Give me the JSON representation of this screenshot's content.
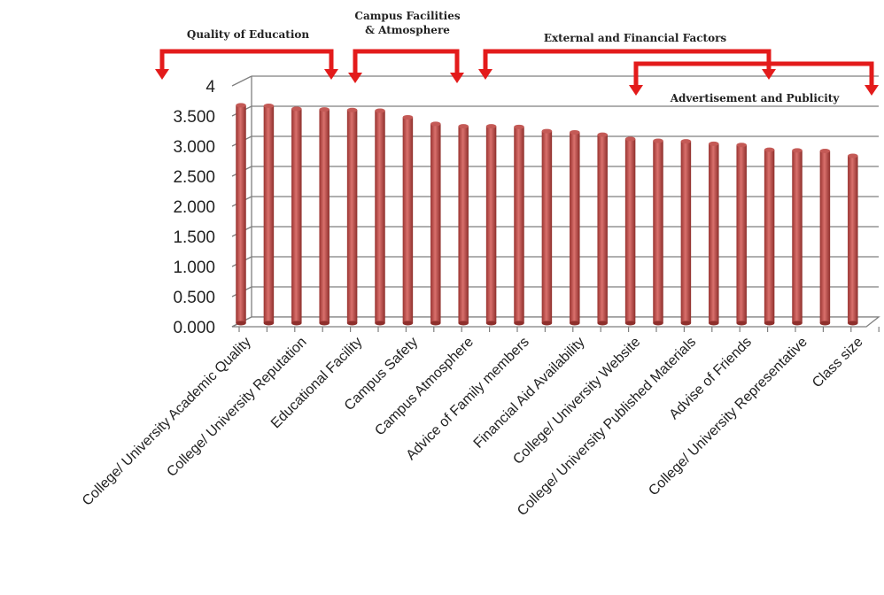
{
  "chart_data": {
    "type": "bar",
    "title": "",
    "xlabel": "",
    "ylabel": "",
    "ylim": [
      0,
      4
    ],
    "yticks": [
      "0.000",
      "0.500",
      "1.000",
      "1.500",
      "2.000",
      "2.500",
      "3.000",
      "3.500",
      "4"
    ],
    "grid": true,
    "bar_color": "#c0504d",
    "arrow_color": "#e31b1b",
    "categories": [
      "College/ University Academic Quality",
      "",
      "College/ University Reputation",
      "",
      "Educational Facility",
      "",
      "Campus Safety",
      "",
      "Campus Atmosphere",
      "",
      "Advice of Family members",
      "",
      "Financial Aid Availability",
      "",
      "College/ University Website",
      "",
      "College/ University Published Materials",
      "",
      "Advise of Friends",
      "",
      "College/ University Representative",
      "",
      "Class size"
    ],
    "values": [
      3.62,
      3.61,
      3.56,
      3.55,
      3.54,
      3.53,
      3.42,
      3.31,
      3.27,
      3.27,
      3.26,
      3.19,
      3.17,
      3.13,
      3.06,
      3.03,
      3.02,
      2.98,
      2.96,
      2.88,
      2.87,
      2.86,
      2.78
    ],
    "annotations": [
      {
        "text": "Quality of Education",
        "span": [
          0,
          3
        ]
      },
      {
        "text": "Campus Facilities\n& Atmosphere",
        "span": [
          4,
          8
        ]
      },
      {
        "text": "External and Financial Factors",
        "span": [
          9,
          19
        ]
      },
      {
        "text": "Advertisement and Publicity",
        "span": [
          14,
          22
        ]
      }
    ]
  }
}
